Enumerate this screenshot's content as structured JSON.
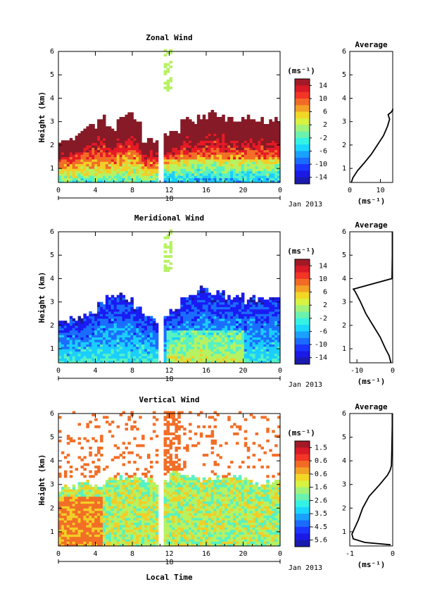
{
  "chart_data": [
    {
      "type": "heatmap",
      "title": "Zonal Wind",
      "ylabel": "Height (km)",
      "xticks": [
        "0",
        "4",
        "8",
        "12",
        "16",
        "20",
        "0"
      ],
      "yticks": [
        "1",
        "2",
        "3",
        "4",
        "5",
        "6"
      ],
      "xlim": [
        0,
        24
      ],
      "ylim": [
        0.4,
        6
      ],
      "date_day": "18",
      "date_label": "Jan 2013",
      "gap_hours": [
        10.7,
        11.2
      ],
      "cloud_tops_km": [
        2.1,
        2.3,
        2.6,
        2.8,
        3.1,
        2.7,
        3.1,
        3.3,
        3.0,
        2.2,
        2.1,
        2.4,
        2.5,
        3.1,
        3.0,
        3.2,
        3.3,
        3.2,
        3.1,
        3.1,
        3.2,
        3.0,
        2.9,
        3.0
      ],
      "colorbar": {
        "unit": "(ms⁻¹)",
        "ticks": [
          "14",
          "10",
          "6",
          "2",
          "-2",
          "-6",
          "-10",
          "-14"
        ],
        "min": -16,
        "max": 16
      },
      "average": {
        "title": "Average",
        "xlabel": "(ms⁻¹)",
        "xticks": [
          "0",
          "10"
        ],
        "xlim": [
          0,
          14
        ],
        "heights": [
          0.4,
          0.6,
          0.9,
          1.2,
          1.6,
          2.0,
          2.4,
          2.8,
          3.1,
          3.3,
          3.4,
          3.5,
          3.55
        ],
        "values": [
          0.5,
          1.0,
          2.5,
          4.5,
          7.0,
          9.0,
          11.0,
          12.3,
          13.0,
          12.5,
          13.5,
          14.0,
          14.0
        ]
      }
    },
    {
      "type": "heatmap",
      "title": "Meridional Wind",
      "ylabel": "Height (km)",
      "xticks": [
        "0",
        "4",
        "8",
        "12",
        "16",
        "20",
        "0"
      ],
      "yticks": [
        "1",
        "2",
        "3",
        "4",
        "5",
        "6"
      ],
      "xlim": [
        0,
        24
      ],
      "ylim": [
        0.4,
        6
      ],
      "date_day": "18",
      "date_label": "Jan 2013",
      "gap_hours": [
        10.7,
        11.2
      ],
      "cloud_tops_km": [
        2.1,
        2.2,
        2.3,
        2.5,
        2.9,
        3.2,
        3.3,
        3.1,
        2.7,
        2.3,
        2.2,
        2.4,
        2.6,
        3.1,
        3.3,
        3.5,
        3.3,
        3.4,
        3.2,
        3.2,
        3.0,
        3.1,
        3.1,
        3.1
      ],
      "colorbar": {
        "unit": "(ms⁻¹)",
        "ticks": [
          "14",
          "10",
          "6",
          "2",
          "-2",
          "-6",
          "-10",
          "-14"
        ],
        "min": -16,
        "max": 16
      },
      "average": {
        "title": "Average",
        "xlabel": "(ms⁻¹)",
        "xticks": [
          "-10",
          "0"
        ],
        "xlim": [
          -12,
          0
        ],
        "heights": [
          0.4,
          0.7,
          1.0,
          1.5,
          2.0,
          2.5,
          3.0,
          3.3,
          3.45,
          3.55,
          4.0,
          5.0,
          6.0
        ],
        "values": [
          -0.5,
          -1.0,
          -2.0,
          -3.5,
          -5.5,
          -7.5,
          -9.0,
          -10.0,
          -10.5,
          -11.0,
          -0.2,
          -0.1,
          -0.1
        ]
      }
    },
    {
      "type": "heatmap",
      "title": "Vertical Wind",
      "ylabel": "Height (km)",
      "xlabel": "Local Time",
      "xticks": [
        "0",
        "4",
        "8",
        "12",
        "16",
        "20",
        "0"
      ],
      "yticks": [
        "1",
        "2",
        "3",
        "4",
        "5",
        "6"
      ],
      "xlim": [
        0,
        24
      ],
      "ylim": [
        0.4,
        6
      ],
      "date_day": "18",
      "date_label": "Jan 2013",
      "gap_hours": [
        10.7,
        11.2
      ],
      "cloud_tops_km": [
        2.8,
        2.9,
        3.0,
        2.9,
        2.9,
        3.2,
        3.3,
        3.2,
        3.3,
        3.2,
        3.1,
        3.2,
        3.5,
        3.3,
        3.3,
        3.2,
        3.2,
        3.2,
        3.2,
        3.2,
        3.1,
        3.0,
        3.0,
        3.1
      ],
      "colorbar": {
        "unit": "(ms⁻¹)",
        "ticks": [
          "1.5",
          "0.6",
          "-0.6",
          "-1.6",
          "-2.6",
          "-3.5",
          "-4.5",
          "-5.6"
        ],
        "min": -6.0,
        "max": 2.0
      },
      "average": {
        "title": "Average",
        "xlabel": "(ms⁻¹)",
        "xticks": [
          "-1",
          "0"
        ],
        "xlim": [
          -1,
          0
        ],
        "heights": [
          0.45,
          0.55,
          0.7,
          0.9,
          1.1,
          1.5,
          2.0,
          2.5,
          3.0,
          3.4,
          3.6,
          3.8,
          4.5,
          5.5,
          6.0
        ],
        "values": [
          -0.05,
          -0.65,
          -0.92,
          -0.95,
          -0.9,
          -0.8,
          -0.7,
          -0.55,
          -0.3,
          -0.12,
          -0.06,
          -0.03,
          -0.02,
          -0.01,
          -0.01
        ]
      }
    }
  ]
}
